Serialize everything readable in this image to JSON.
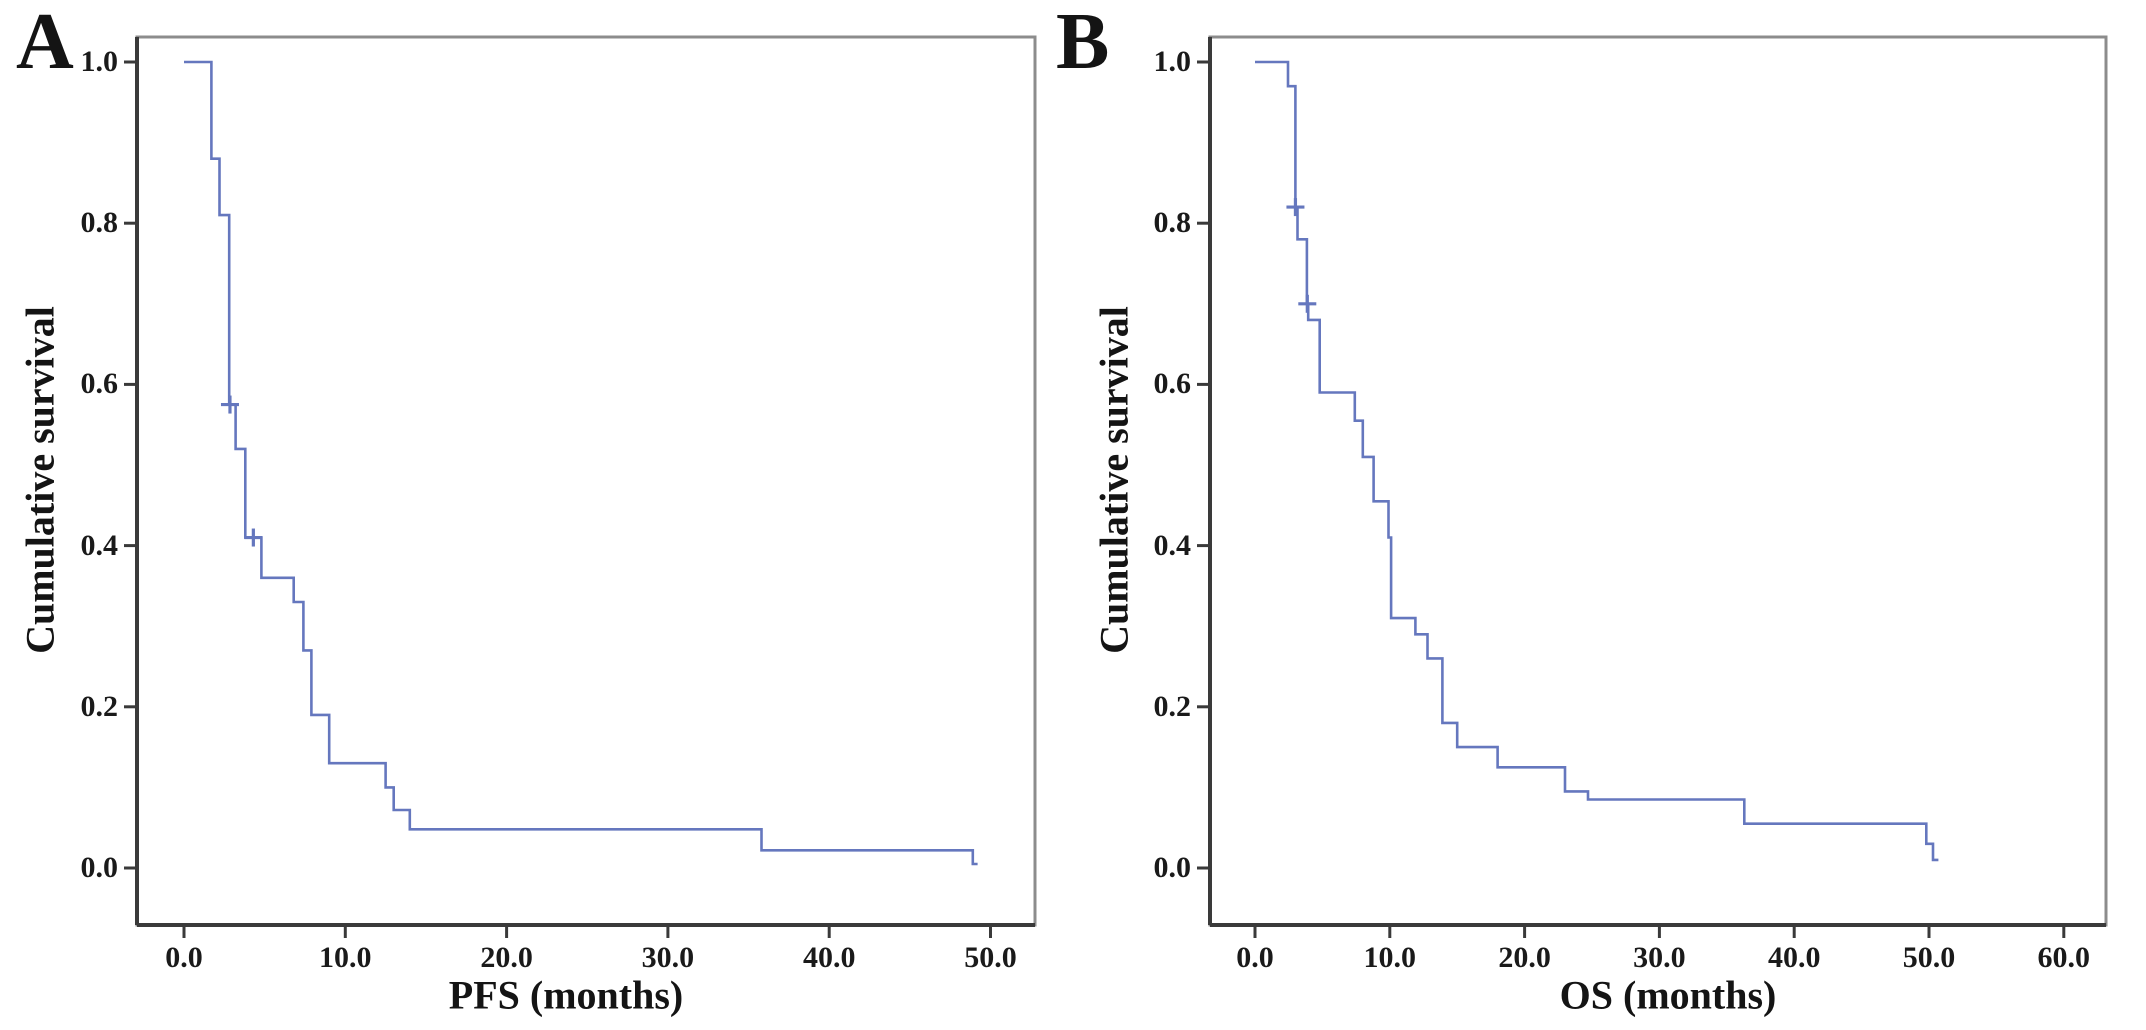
{
  "figure": {
    "background_color": "#ffffff",
    "curve_color": "#6577be",
    "frame_color": "#8c8c8c",
    "axis_color": "#3a3a3a",
    "text_color": "#141414"
  },
  "chart_data": [
    {
      "type": "line",
      "subtype": "kaplan-meier-step",
      "panel_label": "A",
      "xlabel": "PFS (months)",
      "ylabel": "Cumulative survival",
      "xlim": [
        0,
        52.5
      ],
      "ylim": [
        0,
        1.0
      ],
      "grid": false,
      "legend": "none",
      "xticks": [
        {
          "v": 0,
          "label": "0.0"
        },
        {
          "v": 10,
          "label": "10.0"
        },
        {
          "v": 20,
          "label": "20.0"
        },
        {
          "v": 30,
          "label": "30.0"
        },
        {
          "v": 40,
          "label": "40.0"
        },
        {
          "v": 50,
          "label": "50.0"
        }
      ],
      "yticks": [
        {
          "v": 1.0,
          "label": "1.0"
        },
        {
          "v": 0.8,
          "label": "0.8"
        },
        {
          "v": 0.6,
          "label": "0.6"
        },
        {
          "v": 0.4,
          "label": "0.4"
        },
        {
          "v": 0.2,
          "label": "0.2"
        },
        {
          "v": 0.0,
          "label": "0.0"
        }
      ],
      "steps": [
        [
          0.0,
          1.0
        ],
        [
          1.7,
          0.88
        ],
        [
          2.2,
          0.81
        ],
        [
          2.8,
          0.575
        ],
        [
          3.2,
          0.52
        ],
        [
          3.8,
          0.41
        ],
        [
          4.8,
          0.36
        ],
        [
          6.8,
          0.33
        ],
        [
          7.4,
          0.27
        ],
        [
          7.9,
          0.19
        ],
        [
          9.0,
          0.13
        ],
        [
          12.5,
          0.1
        ],
        [
          13.0,
          0.072
        ],
        [
          14.0,
          0.048
        ],
        [
          35.8,
          0.022
        ],
        [
          48.9,
          0.005
        ]
      ],
      "end_t": 49.2,
      "censors": [
        [
          2.85,
          0.575
        ],
        [
          4.3,
          0.41
        ]
      ]
    },
    {
      "type": "line",
      "subtype": "kaplan-meier-step",
      "panel_label": "B",
      "xlabel": "OS (months)",
      "ylabel": "Cumulative survival",
      "xlim": [
        0,
        63
      ],
      "ylim": [
        0,
        1.0
      ],
      "grid": false,
      "legend": "none",
      "xticks": [
        {
          "v": 0,
          "label": "0.0"
        },
        {
          "v": 10,
          "label": "10.0"
        },
        {
          "v": 20,
          "label": "20.0"
        },
        {
          "v": 30,
          "label": "30.0"
        },
        {
          "v": 40,
          "label": "40.0"
        },
        {
          "v": 50,
          "label": "50.0"
        },
        {
          "v": 60,
          "label": "60.0"
        }
      ],
      "yticks": [
        {
          "v": 1.0,
          "label": "1.0"
        },
        {
          "v": 0.8,
          "label": "0.8"
        },
        {
          "v": 0.6,
          "label": "0.6"
        },
        {
          "v": 0.4,
          "label": "0.4"
        },
        {
          "v": 0.2,
          "label": "0.2"
        },
        {
          "v": 0.0,
          "label": "0.0"
        }
      ],
      "steps": [
        [
          0.0,
          1.0
        ],
        [
          2.45,
          0.97
        ],
        [
          3.0,
          0.82
        ],
        [
          3.15,
          0.78
        ],
        [
          3.85,
          0.7
        ],
        [
          3.95,
          0.68
        ],
        [
          4.8,
          0.59
        ],
        [
          7.4,
          0.555
        ],
        [
          8.0,
          0.51
        ],
        [
          8.8,
          0.455
        ],
        [
          9.9,
          0.41
        ],
        [
          10.1,
          0.31
        ],
        [
          11.9,
          0.29
        ],
        [
          12.8,
          0.26
        ],
        [
          13.9,
          0.18
        ],
        [
          15.0,
          0.15
        ],
        [
          18.0,
          0.125
        ],
        [
          23.0,
          0.095
        ],
        [
          24.7,
          0.085
        ],
        [
          36.3,
          0.055
        ],
        [
          49.8,
          0.03
        ],
        [
          50.3,
          0.01
        ]
      ],
      "end_t": 50.7,
      "censors": [
        [
          3.0,
          0.82
        ],
        [
          3.88,
          0.7
        ]
      ]
    }
  ]
}
